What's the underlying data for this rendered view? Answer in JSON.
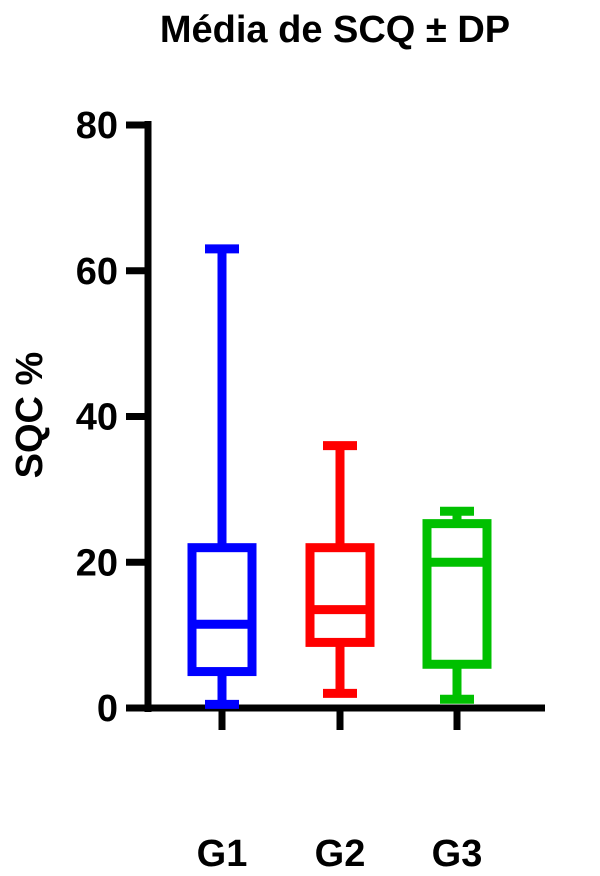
{
  "chart_data": {
    "type": "boxplot",
    "title": "Média de SCQ ± DP",
    "ylabel": "SQC %",
    "xlabel": "",
    "ylim": [
      0,
      80
    ],
    "yticks": [
      "0",
      "20",
      "40",
      "60",
      "80"
    ],
    "categories": [
      "G1",
      "G2",
      "G3"
    ],
    "series": [
      {
        "color": "#0000ff",
        "min": 0.5,
        "q1": 5,
        "median": 11.5,
        "q3": 22,
        "max": 63
      },
      {
        "color": "#ff0000",
        "min": 2,
        "q1": 9,
        "median": 13.5,
        "q3": 22,
        "max": 36
      },
      {
        "color": "#00c000",
        "min": 1.2,
        "q1": 6,
        "median": 20,
        "q3": 25.3,
        "max": 27
      }
    ],
    "grid": false
  }
}
